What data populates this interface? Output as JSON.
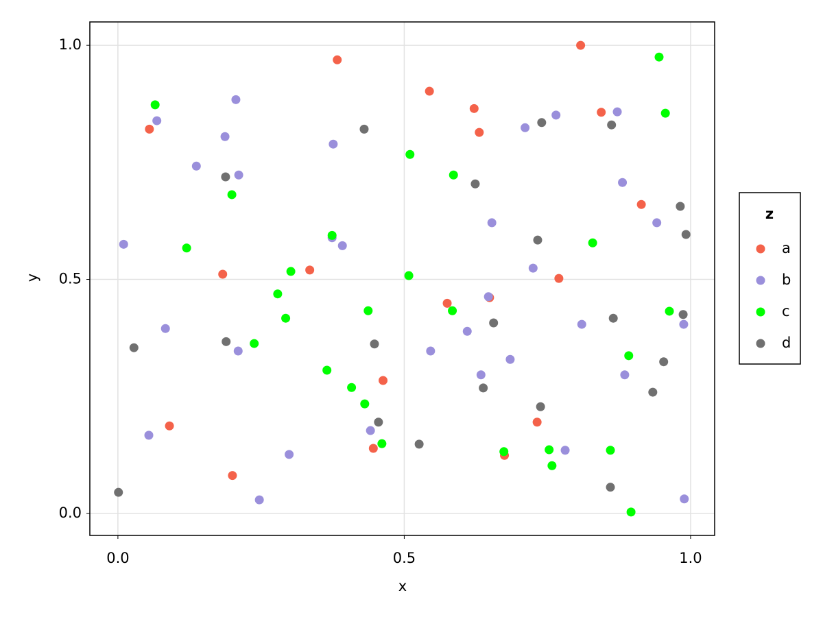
{
  "chart_data": {
    "type": "scatter",
    "x_label": "x",
    "y_label": "y",
    "legend_title": "z",
    "xlim": [
      -0.049,
      1.042
    ],
    "ylim": [
      -0.047,
      1.05
    ],
    "xticks": [
      {
        "value": 0,
        "label": "0.0"
      },
      0.5,
      {
        "value": 1,
        "label": "1.0"
      }
    ],
    "yticks": [
      {
        "value": 0,
        "label": "0.0"
      },
      0.5,
      {
        "value": 1,
        "label": "1.0"
      }
    ],
    "grid": true,
    "legend": "right",
    "series": [
      {
        "name": "a",
        "color": "#f4624a",
        "x": [
          0.055,
          0.383,
          0.544,
          0.622,
          0.631,
          0.808,
          0.844,
          0.914,
          0.183,
          0.335,
          0.77,
          0.575,
          0.649,
          0.463,
          0.09,
          0.732,
          0.446,
          0.675,
          0.2
        ],
        "values": [
          0.821,
          0.969,
          0.902,
          0.865,
          0.814,
          1.0,
          0.857,
          0.66,
          0.511,
          0.52,
          0.502,
          0.449,
          0.461,
          0.284,
          0.187,
          0.195,
          0.139,
          0.124,
          0.081
        ]
      },
      {
        "name": "b",
        "color": "#9a8fdb",
        "x": [
          0.068,
          0.206,
          0.187,
          0.137,
          0.211,
          0.01,
          0.376,
          0.374,
          0.392,
          0.653,
          0.711,
          0.765,
          0.872,
          0.881,
          0.941,
          0.725,
          0.647,
          0.61,
          0.81,
          0.988,
          0.083,
          0.21,
          0.546,
          0.685,
          0.634,
          0.885,
          0.441,
          0.054,
          0.299,
          0.781,
          0.247,
          0.989
        ],
        "values": [
          0.839,
          0.884,
          0.805,
          0.742,
          0.723,
          0.575,
          0.789,
          0.589,
          0.572,
          0.621,
          0.824,
          0.851,
          0.858,
          0.707,
          0.621,
          0.524,
          0.463,
          0.389,
          0.404,
          0.404,
          0.395,
          0.347,
          0.347,
          0.329,
          0.296,
          0.296,
          0.177,
          0.167,
          0.126,
          0.135,
          0.029,
          0.031
        ]
      },
      {
        "name": "c",
        "color": "#00ff00",
        "x": [
          0.065,
          0.199,
          0.12,
          0.374,
          0.51,
          0.586,
          0.945,
          0.956,
          0.829,
          0.302,
          0.508,
          0.279,
          0.293,
          0.437,
          0.584,
          0.963,
          0.238,
          0.365,
          0.408,
          0.431,
          0.461,
          0.892,
          0.674,
          0.753,
          0.86,
          0.758,
          0.896
        ],
        "values": [
          0.873,
          0.681,
          0.567,
          0.594,
          0.767,
          0.723,
          0.975,
          0.855,
          0.578,
          0.517,
          0.508,
          0.469,
          0.417,
          0.433,
          0.433,
          0.432,
          0.363,
          0.306,
          0.269,
          0.234,
          0.149,
          0.337,
          0.132,
          0.136,
          0.135,
          0.102,
          0.003
        ]
      },
      {
        "name": "d",
        "color": "#707070",
        "x": [
          0.43,
          0.188,
          0.624,
          0.74,
          0.862,
          0.982,
          0.992,
          0.733,
          0.656,
          0.865,
          0.987,
          0.028,
          0.189,
          0.448,
          0.953,
          0.638,
          0.934,
          0.738,
          0.455,
          0.526,
          0.001,
          0.86
        ],
        "values": [
          0.821,
          0.719,
          0.704,
          0.835,
          0.83,
          0.656,
          0.596,
          0.584,
          0.407,
          0.417,
          0.425,
          0.354,
          0.367,
          0.362,
          0.324,
          0.268,
          0.259,
          0.228,
          0.195,
          0.148,
          0.045,
          0.056
        ]
      }
    ]
  }
}
